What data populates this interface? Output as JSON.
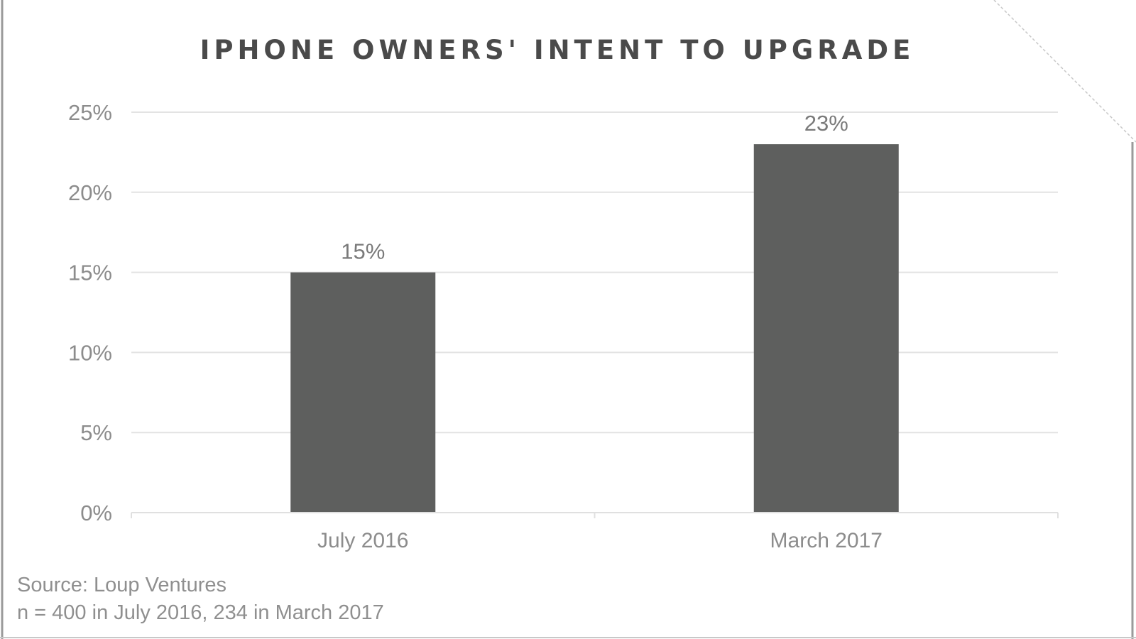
{
  "chart_data": {
    "type": "bar",
    "title": "IPHONE OWNERS' INTENT TO UPGRADE",
    "categories": [
      "July 2016",
      "March 2017"
    ],
    "values": [
      15,
      23
    ],
    "data_labels": [
      "15%",
      "23%"
    ],
    "ylim": [
      0,
      25
    ],
    "yticks": [
      0,
      5,
      10,
      15,
      20,
      25
    ],
    "ytick_labels": [
      "0%",
      "5%",
      "10%",
      "15%",
      "20%",
      "25%"
    ],
    "grid": true,
    "legend": "none",
    "bar_color": "#5e5f5e"
  },
  "footnotes": {
    "source": "Source: Loup Ventures",
    "sample": "n = 400 in July 2016, 234 in March 2017"
  }
}
